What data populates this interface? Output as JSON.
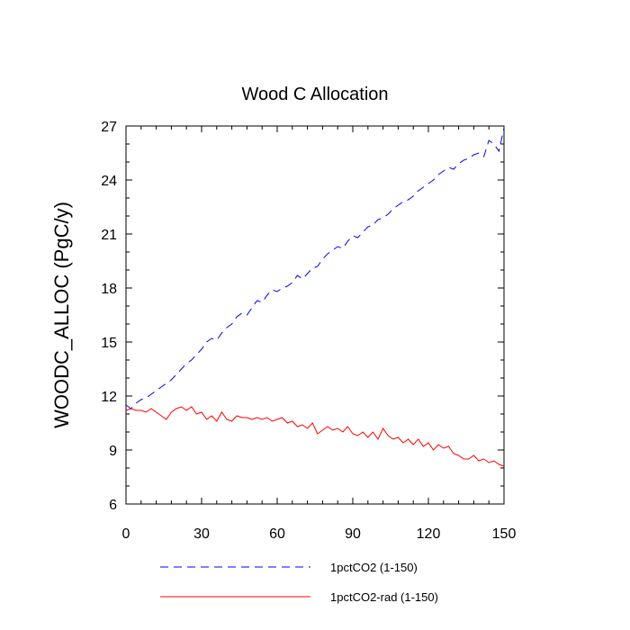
{
  "chart_data": {
    "type": "line",
    "title": "Wood C Allocation",
    "xlabel": "",
    "ylabel": "WOODC_ALLOC  (PgC/y)",
    "xlim": [
      0,
      150
    ],
    "ylim": [
      6,
      27
    ],
    "xticks": [
      0,
      30,
      60,
      90,
      120,
      150
    ],
    "yticks": [
      6,
      9,
      12,
      15,
      18,
      21,
      24,
      27
    ],
    "grid": false,
    "legend": "bottom",
    "series": [
      {
        "name": "1pctCO2 (1-150)",
        "color": "#0000ff",
        "style": "dashed",
        "x": [
          0,
          2,
          4,
          6,
          8,
          10,
          12,
          14,
          16,
          18,
          20,
          22,
          24,
          26,
          28,
          30,
          32,
          34,
          36,
          38,
          40,
          42,
          44,
          46,
          48,
          50,
          52,
          54,
          56,
          58,
          60,
          62,
          64,
          66,
          68,
          70,
          72,
          74,
          76,
          78,
          80,
          82,
          84,
          86,
          88,
          90,
          92,
          94,
          96,
          98,
          100,
          102,
          104,
          106,
          108,
          110,
          112,
          114,
          116,
          118,
          120,
          122,
          124,
          126,
          128,
          130,
          132,
          134,
          136,
          138,
          140,
          142,
          144,
          146,
          148,
          150
        ],
        "y": [
          11.5,
          11.3,
          11.6,
          11.8,
          11.9,
          12.1,
          12.3,
          12.5,
          12.7,
          12.9,
          13.2,
          13.5,
          13.8,
          14.0,
          14.3,
          14.6,
          15.0,
          15.2,
          15.1,
          15.5,
          15.8,
          16.0,
          16.4,
          16.6,
          16.5,
          16.9,
          17.3,
          17.2,
          17.6,
          17.9,
          17.8,
          18.0,
          18.1,
          18.3,
          18.7,
          18.5,
          18.8,
          19.1,
          19.2,
          19.6,
          19.9,
          20.1,
          20.3,
          20.2,
          20.6,
          20.9,
          20.8,
          21.1,
          21.4,
          21.5,
          21.8,
          21.9,
          22.1,
          22.4,
          22.6,
          22.8,
          22.9,
          23.1,
          23.4,
          23.6,
          23.8,
          24.0,
          24.3,
          24.5,
          24.7,
          24.6,
          24.9,
          25.1,
          25.2,
          25.4,
          25.5,
          25.3,
          26.2,
          26.0,
          25.6,
          26.9
        ]
      },
      {
        "name": "1pctCO2-rad (1-150)",
        "color": "#ff0000",
        "style": "solid",
        "x": [
          0,
          2,
          4,
          6,
          8,
          10,
          12,
          14,
          16,
          18,
          20,
          22,
          24,
          26,
          28,
          30,
          32,
          34,
          36,
          38,
          40,
          42,
          44,
          46,
          48,
          50,
          52,
          54,
          56,
          58,
          60,
          62,
          64,
          66,
          68,
          70,
          72,
          74,
          76,
          78,
          80,
          82,
          84,
          86,
          88,
          90,
          92,
          94,
          96,
          98,
          100,
          102,
          104,
          106,
          108,
          110,
          112,
          114,
          116,
          118,
          120,
          122,
          124,
          126,
          128,
          130,
          132,
          134,
          136,
          138,
          140,
          142,
          144,
          146,
          148,
          150
        ],
        "y": [
          11.2,
          11.3,
          11.2,
          11.2,
          11.1,
          11.3,
          11.1,
          10.9,
          10.7,
          11.1,
          11.3,
          11.4,
          11.2,
          11.4,
          11.0,
          11.1,
          10.7,
          10.9,
          10.6,
          11.1,
          10.7,
          10.6,
          10.9,
          10.8,
          10.8,
          10.7,
          10.8,
          10.7,
          10.8,
          10.6,
          10.7,
          10.8,
          10.5,
          10.6,
          10.3,
          10.4,
          10.2,
          10.5,
          9.9,
          10.1,
          10.3,
          10.1,
          10.2,
          10.0,
          10.3,
          9.9,
          9.8,
          10.0,
          9.7,
          10.0,
          9.6,
          10.2,
          9.8,
          9.6,
          9.7,
          9.4,
          9.6,
          9.3,
          9.6,
          9.2,
          9.4,
          9.0,
          9.3,
          9.1,
          9.2,
          8.8,
          8.7,
          8.5,
          8.5,
          8.7,
          8.4,
          8.5,
          8.3,
          8.4,
          8.2,
          8.1
        ]
      }
    ]
  }
}
